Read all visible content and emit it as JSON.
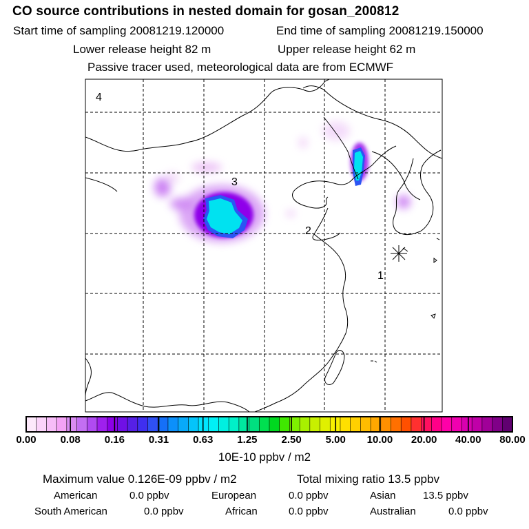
{
  "header": {
    "title": "CO  source contributions in nested domain for gosan_200812",
    "start_label": "Start time of sampling 20081219.120000",
    "end_label": "End time of sampling 20081219.150000",
    "lower_label": "Lower release height   82 m",
    "upper_label": "Upper release height   62 m",
    "tracer_note": "Passive tracer used, meteorological data are from ECMWF"
  },
  "map": {
    "region_labels": [
      "1",
      "2",
      "3",
      "4"
    ],
    "receptor_symbol": "asterisk-marker"
  },
  "colorbar": {
    "colors": [
      "#fde9fb",
      "#fbd3fa",
      "#f7bdf8",
      "#f4a3f6",
      "#d98cf3",
      "#c36ff2",
      "#b04bf1",
      "#9f20ee",
      "#8c00e8",
      "#7010e6",
      "#5620e6",
      "#3f2ff0",
      "#2f50f4",
      "#1570f8",
      "#0c90fa",
      "#08aafa",
      "#04c4fb",
      "#00e4fe",
      "#00f0f6",
      "#00f0e0",
      "#00f0c8",
      "#00e8a0",
      "#00e080",
      "#00e050",
      "#00d820",
      "#40e800",
      "#7ef000",
      "#a8f000",
      "#c8f000",
      "#e0f000",
      "#f8f000",
      "#ffe000",
      "#ffd000",
      "#ffbc00",
      "#ffa800",
      "#ff9000",
      "#ff7000",
      "#ff5000",
      "#ff3030",
      "#ff1060",
      "#ff0088",
      "#ff00a8",
      "#f000b0",
      "#d800b0",
      "#c000a8",
      "#a00098",
      "#800088",
      "#600070"
    ],
    "tick_labels": [
      "0.00",
      "0.08",
      "0.16",
      "0.31",
      "0.63",
      "1.25",
      "2.50",
      "5.00",
      "10.00",
      "20.00",
      "40.00",
      "80.00"
    ],
    "unit_label": "10E-10 ppbv / m2"
  },
  "footer": {
    "max_value": "Maximum value  0.126E-09 ppbv / m2",
    "total_mixing": "Total mixing ratio      13.5 ppbv",
    "american_label": "American",
    "american_value": "0.0 ppbv",
    "european_label": "European",
    "european_value": "0.0 ppbv",
    "asian_label": "Asian",
    "asian_value": "13.5 ppbv",
    "south_american_label": "South American",
    "south_american_value": "0.0 ppbv",
    "african_label": "African",
    "african_value": "0.0 ppbv",
    "australian_label": "Australian",
    "australian_value": "0.0 ppbv"
  }
}
